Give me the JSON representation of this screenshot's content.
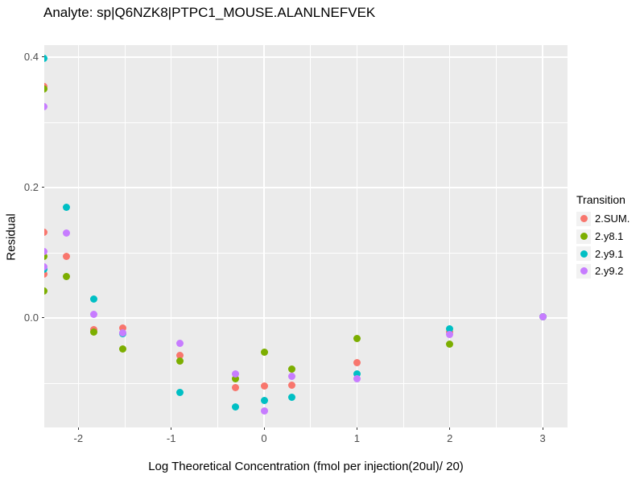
{
  "title": "Analyte: sp|Q6NZK8|PTPC1_MOUSE.ALANLNEFVEK",
  "chart_data": {
    "type": "scatter",
    "title": "Analyte: sp|Q6NZK8|PTPC1_MOUSE.ALANLNEFVEK",
    "xlabel": "Log Theoretical Concentration (fmol per injection(20ul)/ 20)",
    "ylabel": "Residual",
    "x_domain": [
      -2.367,
      3.268
    ],
    "y_domain": [
      -0.1679,
      0.4185
    ],
    "x_major_ticks": [
      -2,
      -1,
      0,
      1,
      2,
      3
    ],
    "x_major_labels": [
      "-2",
      "-1",
      "0",
      "1",
      "2",
      "3"
    ],
    "x_minor_ticks": [
      -1.5,
      -0.5,
      0.5,
      1.5,
      2.5
    ],
    "y_major_ticks": [
      0.0,
      0.2,
      0.4
    ],
    "y_major_labels": [
      "0.0",
      "0.2",
      "0.4"
    ],
    "y_minor_ticks": [
      -0.1,
      0.1,
      0.3
    ],
    "grid": true,
    "legend_position": "right",
    "legend_title": "Transition",
    "panel_bg": "#EBEBEB",
    "grid_color": "#FFFFFF",
    "tick_color": "#333333",
    "tick_label_color": "#4D4D4D",
    "legend_key_bg": "#F2F2F2",
    "series": [
      {
        "name": "2.SUM.",
        "color": "#F8766D",
        "points": [
          [
            -2.37,
            0.355
          ],
          [
            -2.37,
            0.132
          ],
          [
            -2.37,
            0.067
          ],
          [
            -2.13,
            0.094
          ],
          [
            -1.83,
            -0.018
          ],
          [
            -1.52,
            -0.015
          ],
          [
            -0.91,
            -0.058
          ],
          [
            -0.31,
            -0.107
          ],
          [
            0,
            -0.104
          ],
          [
            0.3,
            -0.103
          ],
          [
            1,
            -0.069
          ],
          [
            2,
            -0.022
          ],
          [
            3,
            0.002
          ]
        ]
      },
      {
        "name": "2.y8.1",
        "color": "#7CAE00",
        "points": [
          [
            -2.37,
            0.351
          ],
          [
            -2.37,
            0.095
          ],
          [
            -2.37,
            0.041
          ],
          [
            -2.13,
            0.063
          ],
          [
            -1.83,
            -0.022
          ],
          [
            -1.52,
            -0.047
          ],
          [
            -0.91,
            -0.066
          ],
          [
            -0.31,
            -0.093
          ],
          [
            0,
            -0.052
          ],
          [
            0.3,
            -0.079
          ],
          [
            1,
            -0.032
          ],
          [
            2,
            -0.04
          ],
          [
            3,
            0.002
          ]
        ]
      },
      {
        "name": "2.y9.1",
        "color": "#00BFC4",
        "points": [
          [
            -2.37,
            0.398
          ],
          [
            -2.37,
            0.075
          ],
          [
            -2.13,
            0.17
          ],
          [
            -1.83,
            0.029
          ],
          [
            -1.52,
            -0.024
          ],
          [
            -0.91,
            -0.114
          ],
          [
            -0.31,
            -0.137
          ],
          [
            0,
            -0.126
          ],
          [
            0.3,
            -0.121
          ],
          [
            1,
            -0.086
          ],
          [
            2,
            -0.017
          ],
          [
            3,
            0.002
          ]
        ]
      },
      {
        "name": "2.y9.2",
        "color": "#C77CFF",
        "points": [
          [
            -2.37,
            0.324
          ],
          [
            -2.37,
            0.102
          ],
          [
            -2.37,
            0.079
          ],
          [
            -2.13,
            0.13
          ],
          [
            -1.83,
            0.006
          ],
          [
            -1.52,
            -0.023
          ],
          [
            -0.91,
            -0.039
          ],
          [
            -0.31,
            -0.086
          ],
          [
            0,
            -0.143
          ],
          [
            0.3,
            -0.09
          ],
          [
            1,
            -0.093
          ],
          [
            2,
            -0.025
          ],
          [
            3,
            0.002
          ]
        ]
      }
    ]
  }
}
